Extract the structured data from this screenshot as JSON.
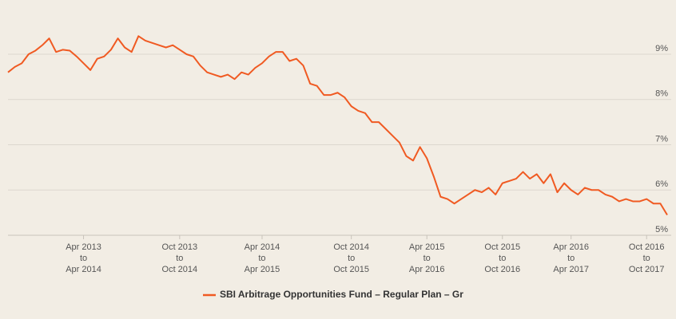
{
  "chart_data": {
    "type": "line",
    "categories": [
      null,
      null,
      null,
      null,
      null,
      null,
      null,
      null,
      null,
      null,
      null,
      [
        "Apr 2013",
        "to",
        "Apr 2014"
      ],
      null,
      null,
      null,
      null,
      null,
      null,
      null,
      null,
      null,
      null,
      null,
      null,
      null,
      [
        "Oct 2013",
        "to",
        "Oct 2014"
      ],
      null,
      null,
      null,
      null,
      null,
      null,
      null,
      null,
      null,
      null,
      null,
      [
        "Apr 2014",
        "to",
        "Apr 2015"
      ],
      null,
      null,
      null,
      null,
      null,
      null,
      null,
      null,
      null,
      null,
      null,
      null,
      [
        "Oct 2014",
        "to",
        "Oct 2015"
      ],
      null,
      null,
      null,
      null,
      null,
      null,
      null,
      null,
      null,
      null,
      [
        "Apr 2015",
        "to",
        "Apr 2016"
      ],
      null,
      null,
      null,
      null,
      null,
      null,
      null,
      null,
      null,
      null,
      [
        "Oct 2015",
        "to",
        "Oct 2016"
      ],
      null,
      null,
      null,
      null,
      null,
      null,
      null,
      null,
      null,
      [
        "Apr 2016",
        "to",
        "Apr 2017"
      ],
      null,
      null,
      null,
      null,
      null,
      null,
      null,
      null,
      null,
      null,
      [
        "Oct 2016",
        "to",
        "Oct 2017"
      ],
      null,
      null,
      null
    ],
    "series": [
      {
        "name": "SBI Arbitrage Opportunities Fund – Regular Plan – Gr",
        "color": "#f05a22",
        "values": [
          8.6,
          8.72,
          8.8,
          9.0,
          9.08,
          9.2,
          9.35,
          9.05,
          9.1,
          9.08,
          8.95,
          8.8,
          8.65,
          8.9,
          8.95,
          9.1,
          9.35,
          9.15,
          9.05,
          9.4,
          9.3,
          9.25,
          9.2,
          9.15,
          9.2,
          9.1,
          9.0,
          8.95,
          8.75,
          8.6,
          8.55,
          8.5,
          8.55,
          8.45,
          8.6,
          8.55,
          8.7,
          8.8,
          8.95,
          9.05,
          9.05,
          8.85,
          8.9,
          8.75,
          8.35,
          8.3,
          8.1,
          8.1,
          8.15,
          8.05,
          7.85,
          7.75,
          7.7,
          7.5,
          7.5,
          7.35,
          7.2,
          7.05,
          6.75,
          6.65,
          6.95,
          6.7,
          6.3,
          5.85,
          5.8,
          5.7,
          5.8,
          5.9,
          6.0,
          5.95,
          6.05,
          5.9,
          6.15,
          6.2,
          6.25,
          6.4,
          6.25,
          6.35,
          6.15,
          6.35,
          5.95,
          6.15,
          6.0,
          5.9,
          6.05,
          6.0,
          6.0,
          5.9,
          5.85,
          5.75,
          5.8,
          5.75,
          5.75,
          5.8,
          5.7,
          5.7,
          5.45
        ]
      }
    ],
    "ylim": [
      5,
      10
    ],
    "yticks": [
      {
        "value": 5,
        "label": "5%"
      },
      {
        "value": 6,
        "label": "6%"
      },
      {
        "value": 7,
        "label": "7%"
      },
      {
        "value": 8,
        "label": "8%"
      },
      {
        "value": 9,
        "label": "9%"
      }
    ],
    "grid": true
  }
}
